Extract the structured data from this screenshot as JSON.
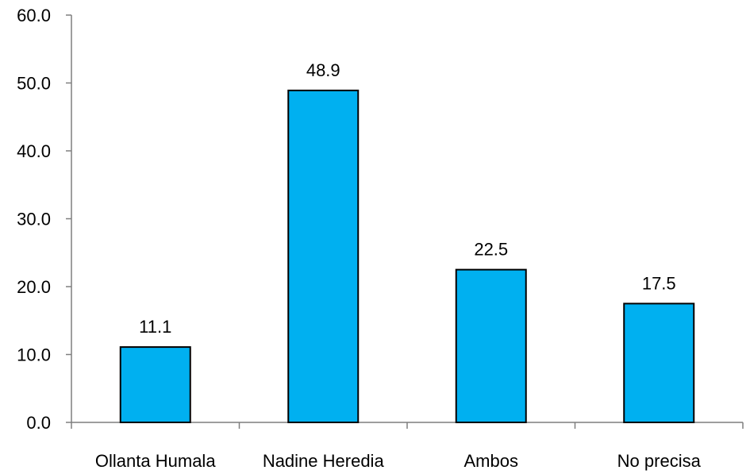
{
  "chart_data": {
    "type": "bar",
    "categories": [
      "Ollanta Humala",
      "Nadine Heredia",
      "Ambos",
      "No precisa"
    ],
    "values": [
      11.1,
      48.9,
      22.5,
      17.5
    ],
    "data_labels": [
      "11.1",
      "48.9",
      "22.5",
      "17.5"
    ],
    "title": "",
    "xlabel": "",
    "ylabel": "",
    "ylim": [
      0,
      60
    ],
    "yticks": [
      0,
      10,
      20,
      30,
      40,
      50,
      60
    ],
    "ytick_labels": [
      "0.0",
      "10.0",
      "20.0",
      "30.0",
      "40.0",
      "50.0",
      "60.0"
    ],
    "grid": false,
    "legend": "none",
    "bar_color": "#00b0f0"
  }
}
